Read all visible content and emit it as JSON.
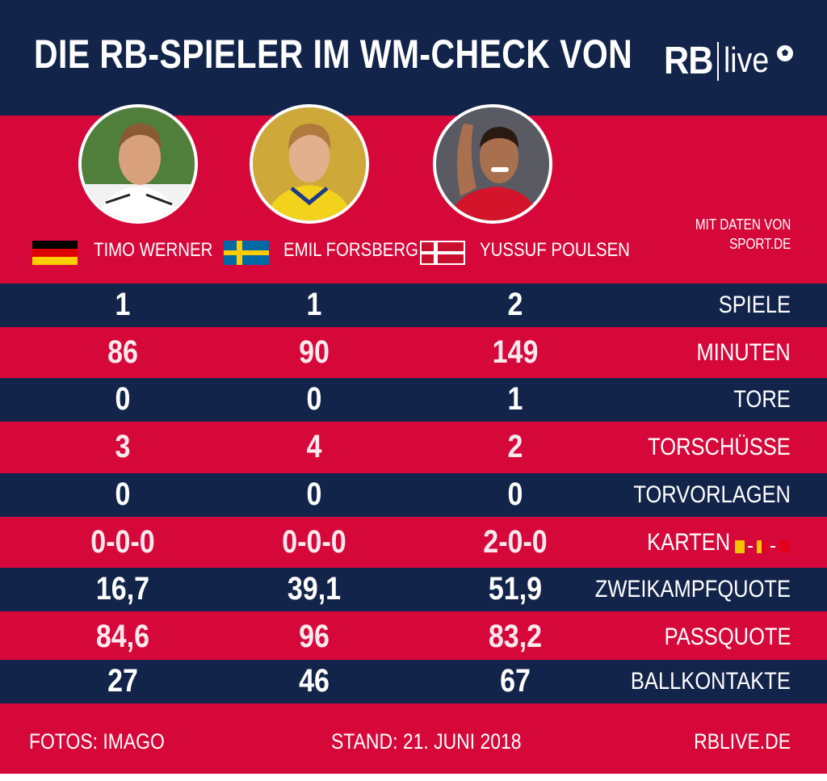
{
  "header": {
    "title": "DIE RB-SPIELER IM WM-CHECK VON",
    "logo_rb": "RB",
    "logo_live": "live"
  },
  "source": {
    "line1": "MIT DATEN VON",
    "line2": "SPORT.DE"
  },
  "players": [
    {
      "name": "TIMO WERNER",
      "country": "germany"
    },
    {
      "name": "EMIL FORSBERG",
      "country": "sweden"
    },
    {
      "name": "YUSSUF POULSEN",
      "country": "denmark"
    }
  ],
  "stats": [
    {
      "label": "SPIELE",
      "values": [
        "1",
        "1",
        "2"
      ]
    },
    {
      "label": "MINUTEN",
      "values": [
        "86",
        "90",
        "149"
      ]
    },
    {
      "label": "TORE",
      "values": [
        "0",
        "0",
        "1"
      ]
    },
    {
      "label": "TORSCHÜSSE",
      "values": [
        "3",
        "4",
        "2"
      ]
    },
    {
      "label": "TORVORLAGEN",
      "values": [
        "0",
        "0",
        "0"
      ]
    },
    {
      "label": "KARTEN",
      "values": [
        "0-0-0",
        "0-0-0",
        "2-0-0"
      ]
    },
    {
      "label": "ZWEIKAMPFQUOTE",
      "values": [
        "16,7",
        "39,1",
        "51,9"
      ]
    },
    {
      "label": "PASSQUOTE",
      "values": [
        "84,6",
        "96",
        "83,2"
      ]
    },
    {
      "label": "BALLKONTAKTE",
      "values": [
        "27",
        "46",
        "67"
      ]
    }
  ],
  "footer": {
    "photos": "FOTOS: IMAGO",
    "date": "STAND: 21. JUNI 2018",
    "site": "RBLIVE.DE"
  },
  "colors": {
    "navy": "#13244b",
    "red": "#d6083a",
    "card_yellow": "#f4c600",
    "card_yellow_red": "#f4c600",
    "card_red": "#e3001b"
  }
}
